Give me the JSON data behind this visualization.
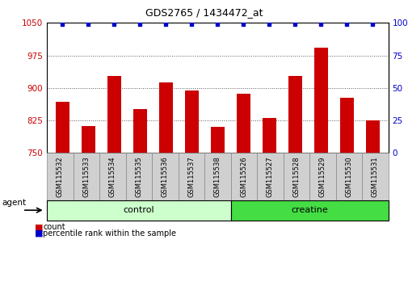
{
  "title": "GDS2765 / 1434472_at",
  "samples": [
    "GSM115532",
    "GSM115533",
    "GSM115534",
    "GSM115535",
    "GSM115536",
    "GSM115537",
    "GSM115538",
    "GSM115526",
    "GSM115527",
    "GSM115528",
    "GSM115529",
    "GSM115530",
    "GSM115531"
  ],
  "counts": [
    868,
    812,
    928,
    852,
    912,
    895,
    810,
    887,
    830,
    928,
    992,
    878,
    825
  ],
  "percentiles": [
    99,
    99,
    99,
    99,
    99,
    99,
    99,
    99,
    99,
    99,
    99,
    99,
    99
  ],
  "bar_color": "#cc0000",
  "dot_color": "#0000cc",
  "ylim_left": [
    750,
    1050
  ],
  "ylim_right": [
    0,
    100
  ],
  "yticks_left": [
    750,
    825,
    900,
    975,
    1050
  ],
  "yticks_right": [
    0,
    25,
    50,
    75,
    100
  ],
  "background_color": "#ffffff",
  "legend_count_color": "#cc0000",
  "legend_pct_color": "#0000cc",
  "agent_label": "agent",
  "group_info": [
    {
      "name": "control",
      "start": 0,
      "end": 6,
      "color": "#ccffcc"
    },
    {
      "name": "creatine",
      "start": 7,
      "end": 12,
      "color": "#44dd44"
    }
  ],
  "tick_label_color": "#cc0000",
  "right_tick_color": "#0000cc",
  "dot_percentile_value": 99,
  "title_fontsize": 9,
  "tick_fontsize": 7.5,
  "sample_fontsize": 6,
  "group_fontsize": 8,
  "legend_fontsize": 7,
  "agent_fontsize": 7.5
}
